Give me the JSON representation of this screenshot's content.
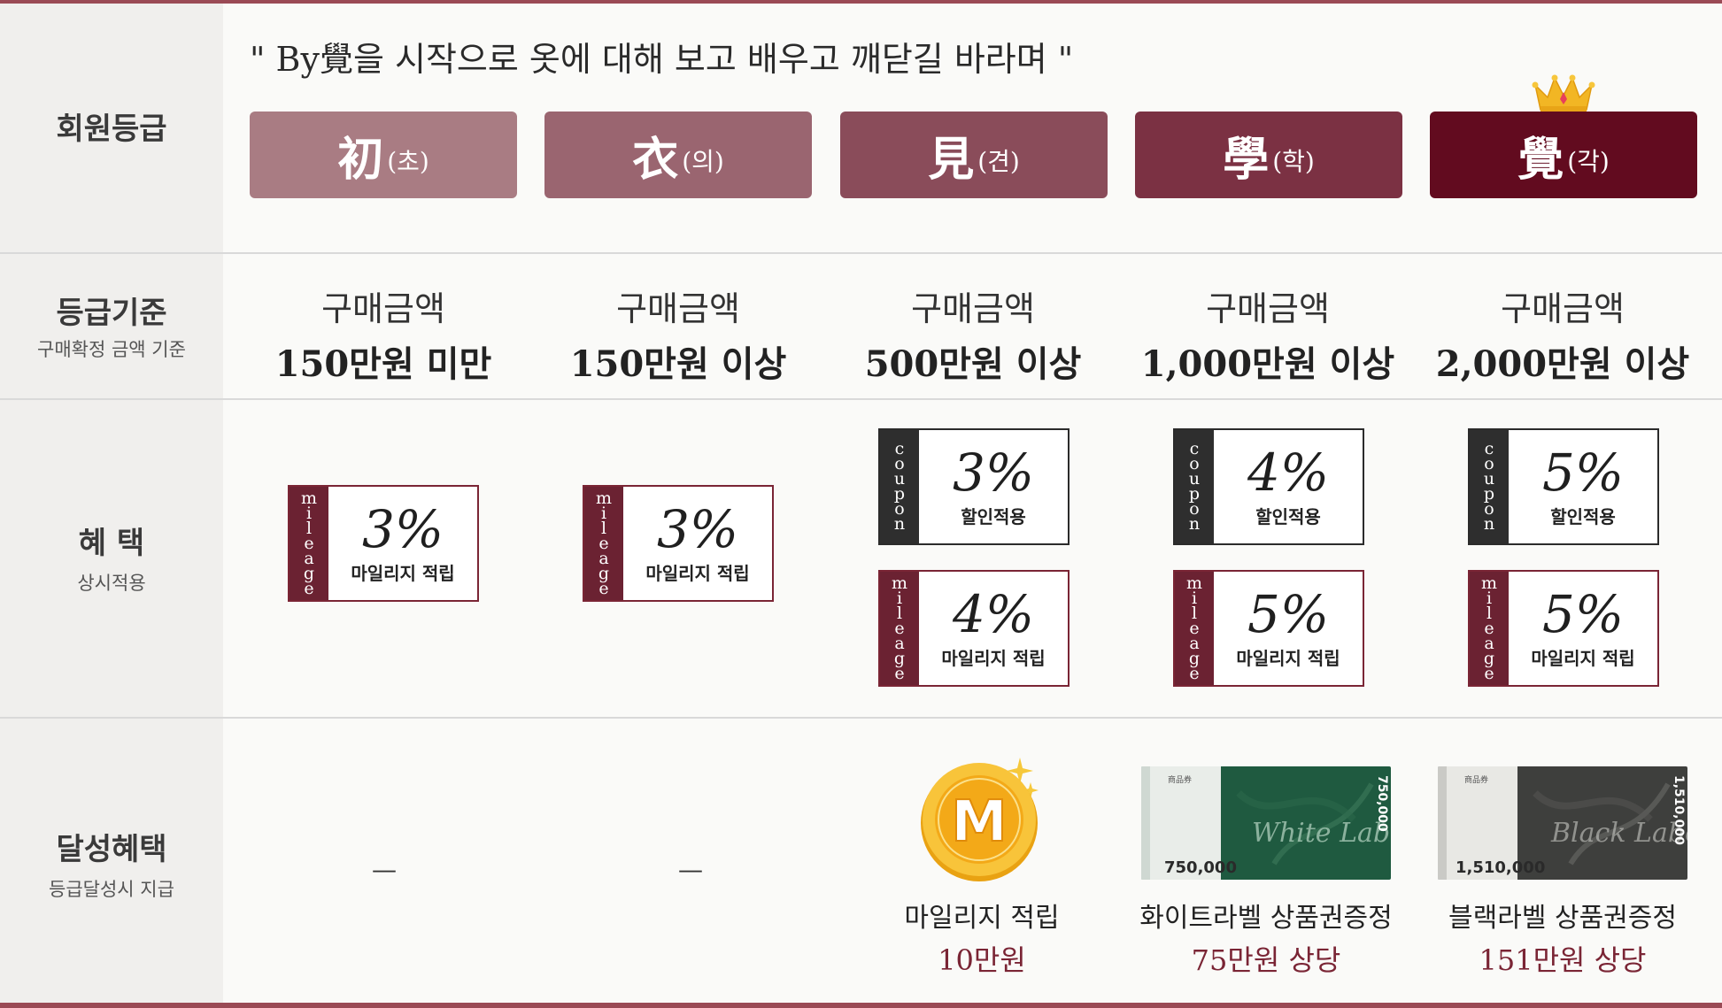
{
  "slogan": "\" By覺을 시작으로 옷에 대해 보고 배우고 깨닫길 바라며 \"",
  "rows": {
    "membership": {
      "label": "회원등급"
    },
    "criteria": {
      "label": "등급기준",
      "sub": "구매확정 금액 기준"
    },
    "benefits": {
      "label": "혜 택",
      "sub": "상시적용"
    },
    "achievement": {
      "label": "달성혜택",
      "sub": "등급달성시 지급"
    }
  },
  "colors": {
    "grade1": "#a97c83",
    "grade2": "#9a6570",
    "grade3": "#8a4c5a",
    "grade4": "#7b3143",
    "grade5": "#620b1f",
    "accent": "#7a2535"
  },
  "grades": [
    {
      "hanja": "初",
      "reading": "(초)",
      "criteria_label": "구매금액",
      "criteria_amount": "150만원 미만"
    },
    {
      "hanja": "衣",
      "reading": "(의)",
      "criteria_label": "구매금액",
      "criteria_amount": "150만원 이상"
    },
    {
      "hanja": "見",
      "reading": "(견)",
      "criteria_label": "구매금액",
      "criteria_amount": "500만원 이상"
    },
    {
      "hanja": "學",
      "reading": "(학)",
      "criteria_label": "구매금액",
      "criteria_amount": "1,000만원 이상"
    },
    {
      "hanja": "覺",
      "reading": "(각)",
      "criteria_label": "구매금액",
      "criteria_amount": "2,000만원 이상",
      "crown_icon": "crown-icon"
    }
  ],
  "tags": {
    "mileage": [
      "m",
      "i",
      "l",
      "e",
      "a",
      "g",
      "e"
    ],
    "coupon": [
      "c",
      "o",
      "u",
      "p",
      "o",
      "n"
    ]
  },
  "benefits": {
    "grade1": {
      "mileage_pct": "3%",
      "mileage_desc": "마일리지 적립"
    },
    "grade2": {
      "mileage_pct": "3%",
      "mileage_desc": "마일리지 적립"
    },
    "grade3": {
      "coupon_pct": "3%",
      "coupon_desc": "할인적용",
      "mileage_pct": "4%",
      "mileage_desc": "마일리지 적립"
    },
    "grade4": {
      "coupon_pct": "4%",
      "coupon_desc": "할인적용",
      "mileage_pct": "5%",
      "mileage_desc": "마일리지 적립"
    },
    "grade5": {
      "coupon_pct": "5%",
      "coupon_desc": "할인적용",
      "mileage_pct": "5%",
      "mileage_desc": "마일리지 적립"
    }
  },
  "achievements": {
    "grade1": {
      "text": "—"
    },
    "grade2": {
      "text": "—"
    },
    "grade3": {
      "line1": "마일리지 적립",
      "line2": "10만원",
      "coin_letter": "M"
    },
    "grade4": {
      "line1": "화이트라벨 상품권증정",
      "line2": "75만원 상당",
      "voucher_amount": "750,000",
      "voucher_side": "750,000",
      "voucher_script": "White Label",
      "voucher_title": "商品券"
    },
    "grade5": {
      "line1": "블랙라벨 상품권증정",
      "line2": "151만원 상당",
      "voucher_amount": "1,510,000",
      "voucher_side": "1,510,000",
      "voucher_script": "Black Label",
      "voucher_title": "商品券"
    }
  }
}
